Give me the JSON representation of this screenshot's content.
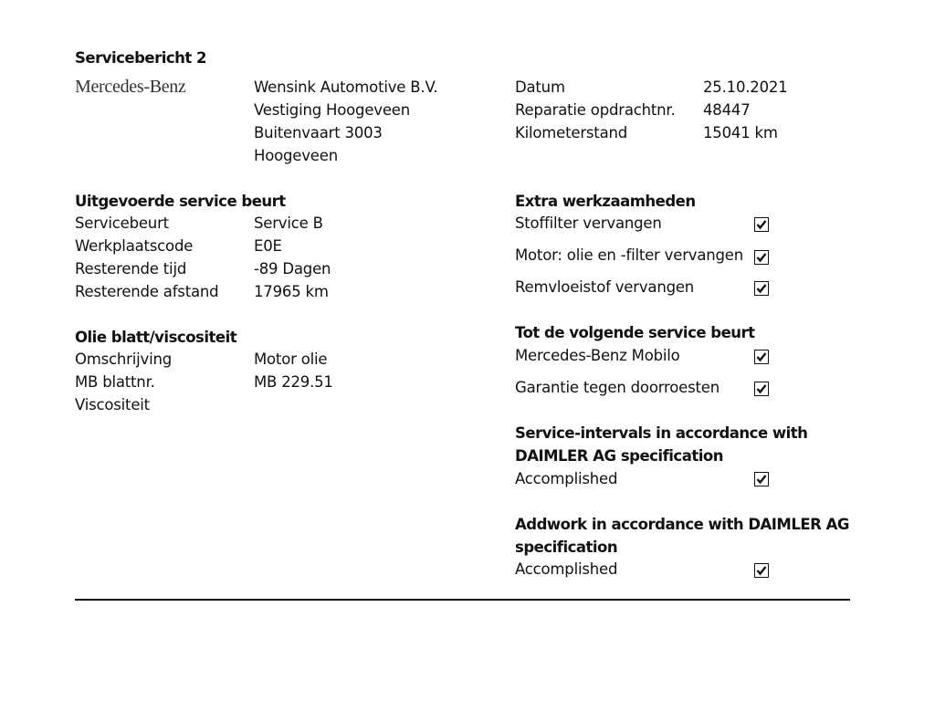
{
  "title": "Servicebericht 2",
  "logo": "Mercedes-Benz",
  "dealer": {
    "name": "Wensink Automotive B.V.",
    "branch": "Vestiging Hoogeveen",
    "street": "Buitenvaart 3003",
    "city": "Hoogeveen"
  },
  "meta": [
    {
      "label": "Datum",
      "value": "25.10.2021"
    },
    {
      "label": "Reparatie opdrachtnr.",
      "value": "48447"
    },
    {
      "label": "Kilometerstand",
      "value": "15041 km"
    }
  ],
  "service": {
    "heading": "Uitgevoerde service beurt",
    "rows": [
      {
        "label": "Servicebeurt",
        "value": "Service B"
      },
      {
        "label": "Werkplaatscode",
        "value": "E0E"
      },
      {
        "label": "Resterende tijd",
        "value": "-89 Dagen"
      },
      {
        "label": "Resterende afstand",
        "value": "17965 km"
      }
    ]
  },
  "oil": {
    "heading": "Olie blatt/viscositeit",
    "rows": [
      {
        "label": "Omschrijving",
        "value": "Motor olie"
      },
      {
        "label": "MB blattnr.",
        "value": "MB 229.51"
      },
      {
        "label": "Viscositeit",
        "value": ""
      }
    ]
  },
  "extra": {
    "heading": "Extra werkzaamheden",
    "items": [
      {
        "label": "Stoffilter vervangen",
        "checked": true
      },
      {
        "label": "Motor: olie en -filter vervangen",
        "checked": true
      },
      {
        "label": "Remvloeistof vervangen",
        "checked": true
      }
    ]
  },
  "next": {
    "heading": "Tot de volgende service beurt",
    "items": [
      {
        "label": "Mercedes-Benz Mobilo",
        "checked": true
      },
      {
        "label": "Garantie tegen doorroesten",
        "checked": true
      }
    ]
  },
  "intervals": {
    "heading1": "Service-intervals in accordance with",
    "heading2": "DAIMLER AG specification",
    "item": {
      "label": "Accomplished",
      "checked": true
    }
  },
  "addwork": {
    "heading1": "Addwork in accordance with DAIMLER AG",
    "heading2": "specification",
    "item": {
      "label": "Accomplished",
      "checked": true
    }
  }
}
